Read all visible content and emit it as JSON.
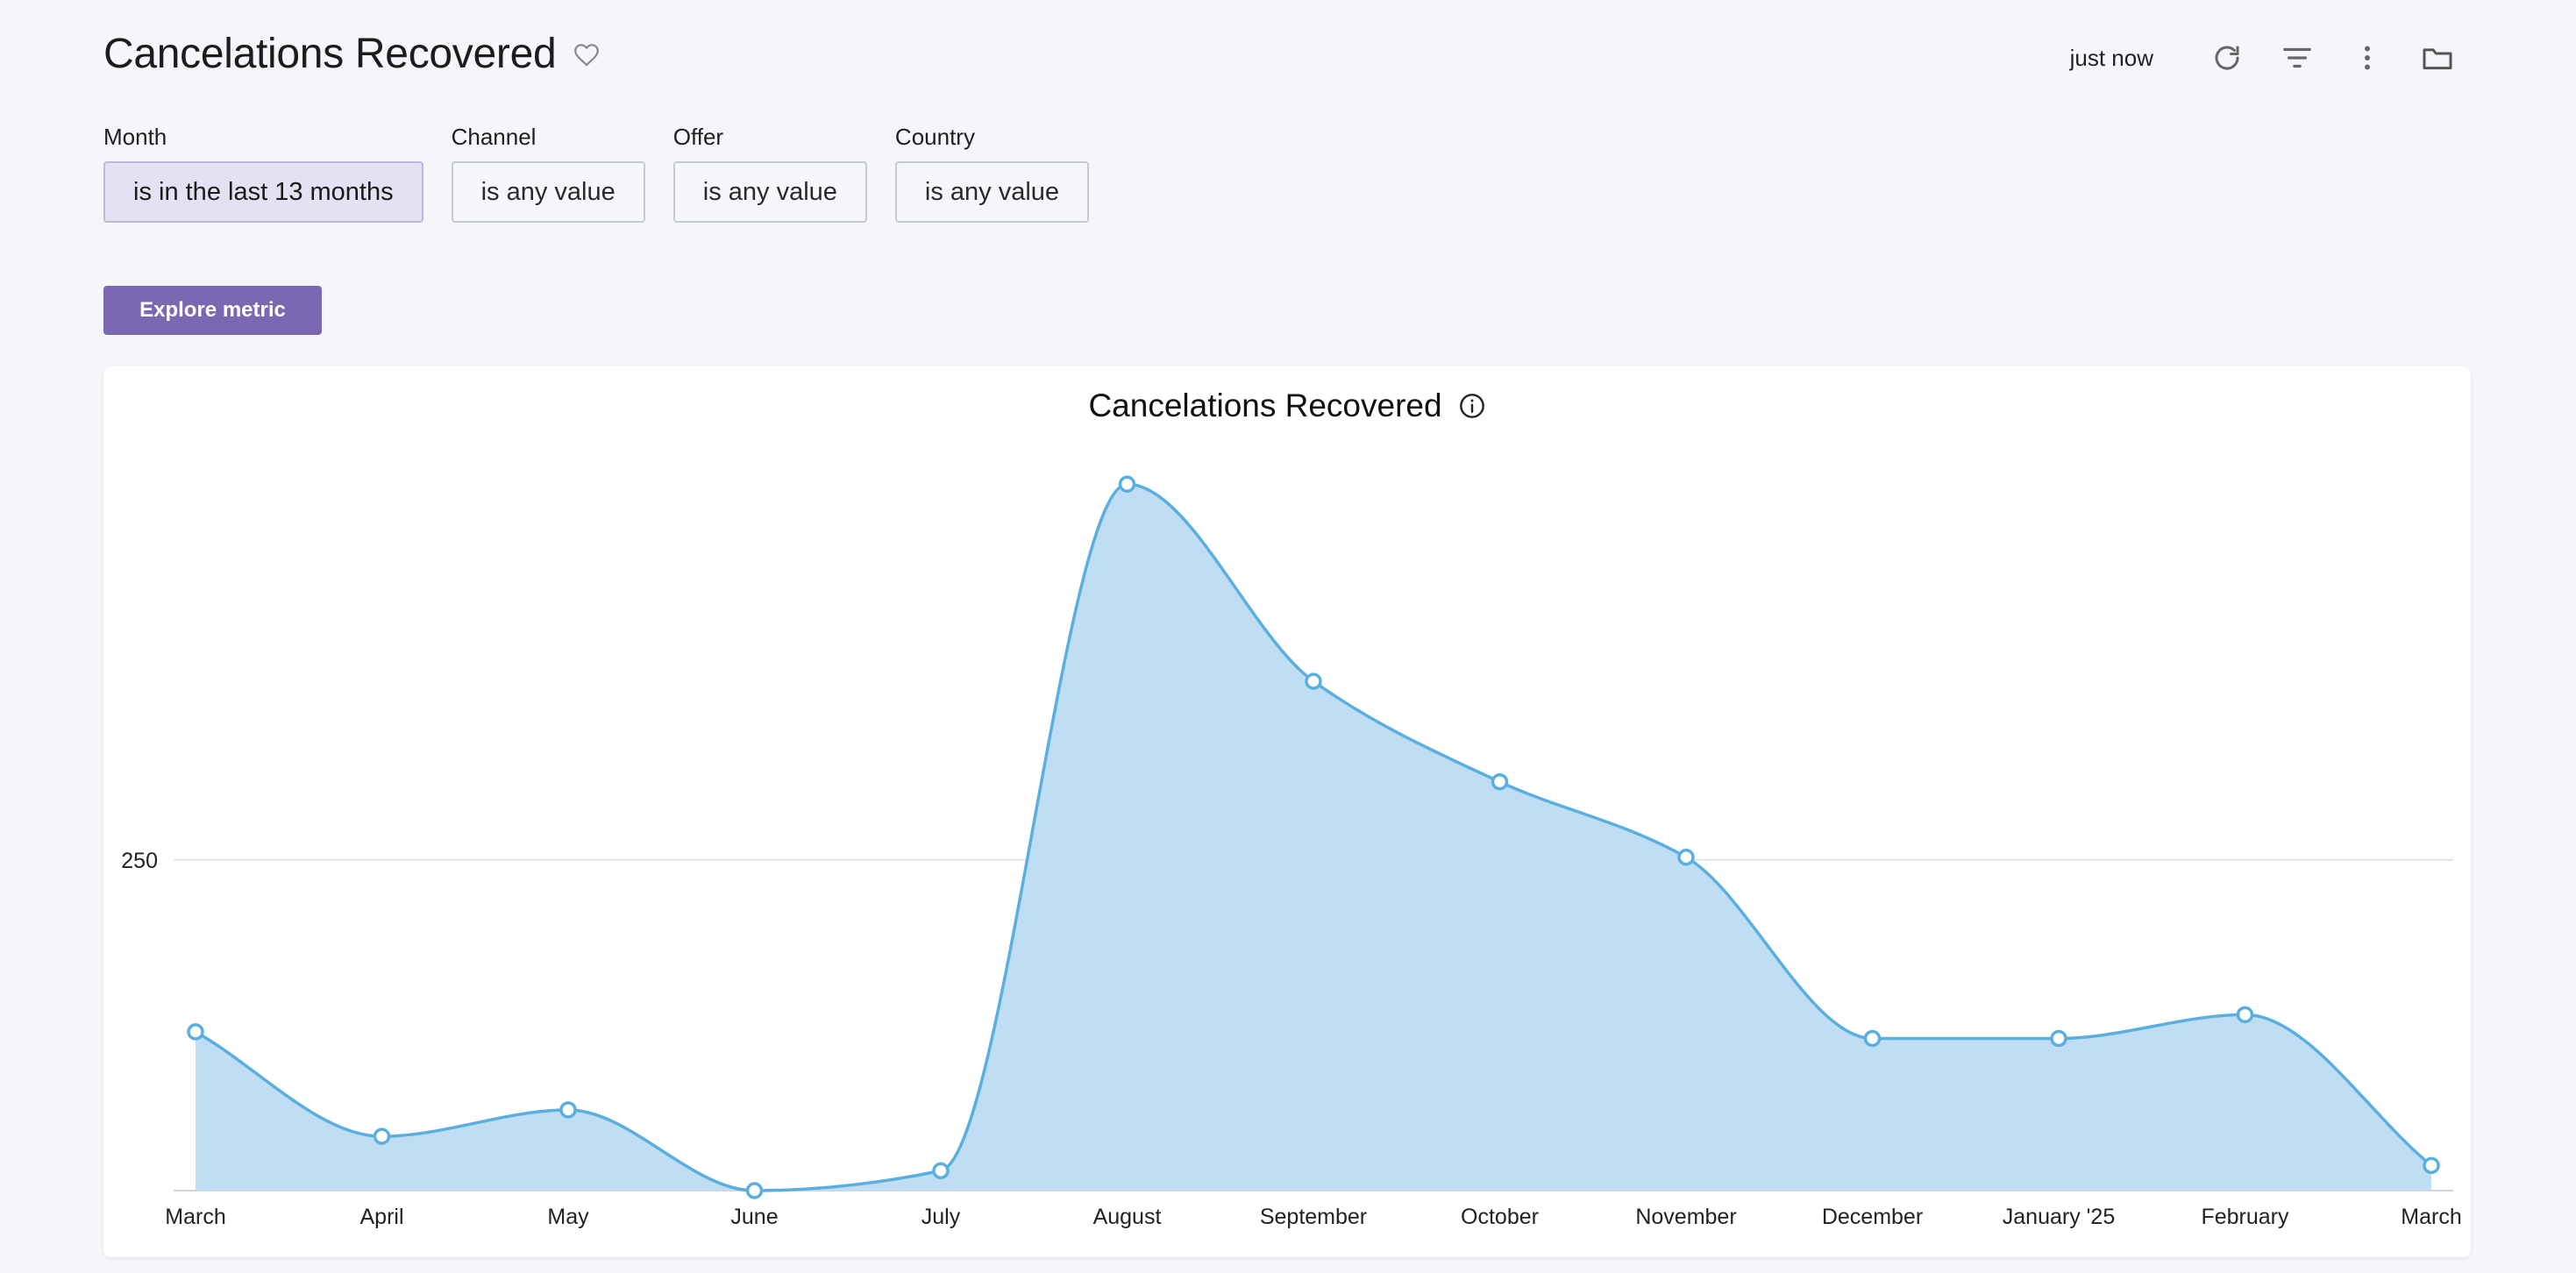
{
  "header": {
    "title": "Cancelations Recovered",
    "refresh_time": "just now"
  },
  "icons": [
    "heart-icon",
    "refresh-icon",
    "filter-icon",
    "more-vertical-icon",
    "folder-icon",
    "info-icon"
  ],
  "filters": [
    {
      "label": "Month",
      "value": "is in the last 13 months",
      "active": true
    },
    {
      "label": "Channel",
      "value": "is any value",
      "active": false
    },
    {
      "label": "Offer",
      "value": "is any value",
      "active": false
    },
    {
      "label": "Country",
      "value": "is any value",
      "active": false
    }
  ],
  "explore_label": "Explore metric",
  "colors": {
    "accent": "#7a68b2",
    "series": "#5aaee0",
    "fill": "#bfdef4"
  },
  "chart_data": {
    "type": "area",
    "title": "Cancelations Recovered",
    "categories": [
      "March",
      "April",
      "May",
      "June",
      "July",
      "August",
      "September",
      "October",
      "November",
      "December",
      "January '25",
      "February",
      "March"
    ],
    "series": [
      {
        "values": [
          120,
          41,
          61,
          0,
          15,
          534,
          385,
          309,
          252,
          115,
          115,
          133,
          19
        ]
      }
    ],
    "yticks": [
      250
    ],
    "ylim": [
      0,
      560
    ],
    "grid": true,
    "legend": "none"
  }
}
